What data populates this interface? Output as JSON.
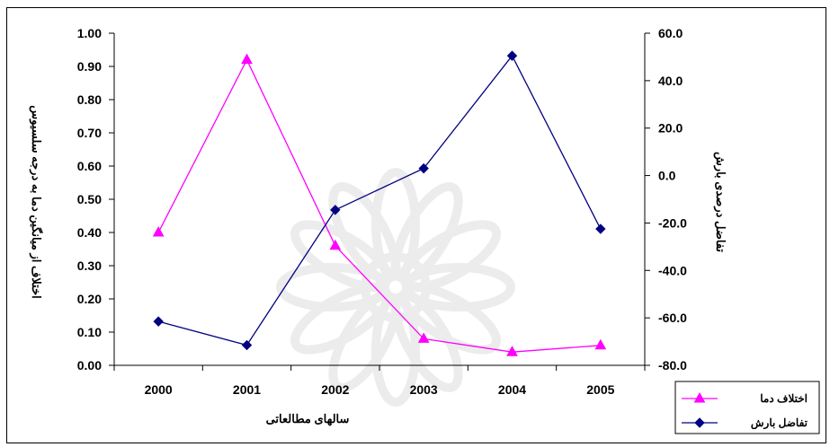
{
  "chart_data": {
    "type": "line",
    "title": "",
    "categories": [
      "2000",
      "2001",
      "2002",
      "2003",
      "2004",
      "2005"
    ],
    "xlabel": "سالهای مطالعاتی",
    "ylabel_left": "اختلاف از میانگین دما به درجه سلسیوس",
    "ylabel_right": "تفاضل درصدی بارش",
    "y_left": {
      "range": [
        0,
        1
      ],
      "ticks": [
        "0.00",
        "0.10",
        "0.20",
        "0.30",
        "0.40",
        "0.50",
        "0.60",
        "0.70",
        "0.80",
        "0.90",
        "1.00"
      ]
    },
    "y_right": {
      "range": [
        -80,
        60
      ],
      "ticks": [
        "-80.0",
        "-60.0",
        "-40.0",
        "-20.0",
        "0.0",
        "20.0",
        "40.0",
        "60.0"
      ]
    },
    "grid": false,
    "legend_position": "bottom-right",
    "series": [
      {
        "name": "اختلاف دما",
        "axis": "left",
        "color": "#FF00FF",
        "marker": "triangle",
        "values": [
          0.4,
          0.92,
          0.36,
          0.08,
          0.04,
          0.06
        ]
      },
      {
        "name": "تفاضل بارش",
        "axis": "right",
        "color": "#000080",
        "marker": "diamond",
        "values": [
          -61.5,
          -71.5,
          -14.5,
          3.0,
          50.5,
          -22.5
        ]
      }
    ]
  }
}
